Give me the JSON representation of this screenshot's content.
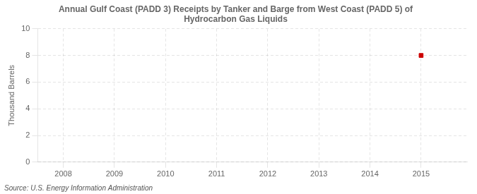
{
  "chart_data": {
    "type": "scatter",
    "title": "Annual Gulf Coast (PADD 3) Receipts by Tanker and Barge from West Coast (PADD 5) of\nHydrocarbon Gas Liquids",
    "ylabel": "Thousand Barrels",
    "annotations": [
      "Source: U.S. Energy Information Administration"
    ],
    "x": [
      2015
    ],
    "values": [
      8
    ],
    "color": "#cc0000",
    "marker": "square",
    "xlim": [
      2007.5,
      2015.9
    ],
    "xticks": [
      2008,
      2009,
      2010,
      2011,
      2012,
      2013,
      2014,
      2015
    ],
    "ylim": [
      0,
      10
    ],
    "yticks": [
      0,
      2,
      4,
      6,
      8,
      10
    ],
    "grid": true
  }
}
